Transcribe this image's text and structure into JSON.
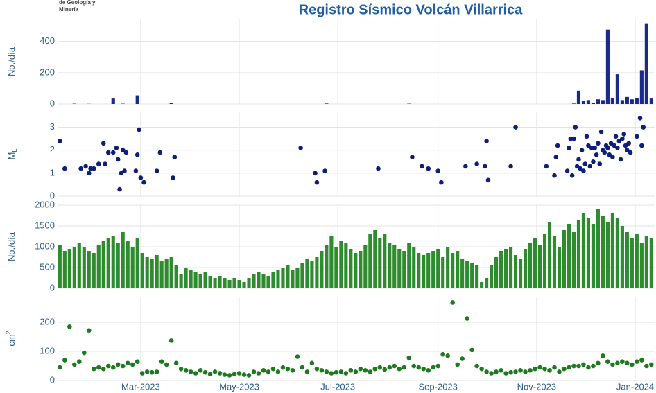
{
  "logo": [
    "de Geología y",
    "Minería"
  ],
  "chart_data": [
    {
      "type": "bar",
      "title": "Registro Sísmico Volcán Villarrica",
      "ylabel": "No./día",
      "color": "#1a2a8c",
      "xlim": [
        8,
        377
      ],
      "ylim": [
        0,
        540
      ],
      "yticks": [
        0,
        200,
        400
      ],
      "grid": true,
      "x": [
        9,
        12,
        15,
        18,
        21,
        24,
        27,
        30,
        33,
        36,
        39,
        42,
        45,
        48,
        51,
        54,
        57,
        60,
        63,
        66,
        69,
        72,
        75,
        78,
        81,
        84,
        87,
        90,
        93,
        96,
        99,
        102,
        105,
        108,
        111,
        114,
        117,
        120,
        123,
        126,
        129,
        132,
        135,
        138,
        141,
        144,
        147,
        150,
        153,
        156,
        159,
        162,
        165,
        168,
        171,
        174,
        177,
        180,
        183,
        186,
        189,
        192,
        195,
        198,
        201,
        204,
        207,
        210,
        213,
        216,
        219,
        222,
        225,
        228,
        231,
        234,
        237,
        240,
        243,
        246,
        249,
        252,
        255,
        258,
        261,
        264,
        267,
        270,
        273,
        276,
        279,
        282,
        285,
        288,
        291,
        294,
        297,
        300,
        303,
        306,
        309,
        312,
        315,
        318,
        321,
        324,
        327,
        330,
        333,
        336,
        339,
        342,
        345,
        348,
        351,
        354,
        357,
        360,
        363,
        366,
        369,
        372,
        375
      ],
      "values": [
        0,
        0,
        0,
        2,
        0,
        0,
        1,
        0,
        0,
        0,
        0,
        35,
        0,
        2,
        0,
        0,
        55,
        0,
        0,
        0,
        0,
        0,
        0,
        5,
        0,
        0,
        0,
        0,
        0,
        0,
        0,
        0,
        0,
        0,
        0,
        0,
        0,
        0,
        0,
        0,
        0,
        0,
        0,
        0,
        0,
        0,
        0,
        0,
        0,
        0,
        0,
        0,
        0,
        0,
        0,
        3,
        0,
        0,
        0,
        0,
        0,
        0,
        0,
        0,
        0,
        0,
        0,
        0,
        0,
        0,
        0,
        0,
        2,
        0,
        0,
        0,
        0,
        0,
        0,
        0,
        0,
        0,
        0,
        0,
        0,
        0,
        0,
        0,
        0,
        0,
        0,
        0,
        0,
        0,
        0,
        0,
        0,
        0,
        0,
        0,
        0,
        0,
        0,
        0,
        0,
        0,
        3,
        85,
        20,
        25,
        5,
        30,
        25,
        475,
        40,
        190,
        25,
        45,
        30,
        40,
        215,
        515,
        35
      ]
    },
    {
      "type": "scatter",
      "ylabel": "M",
      "ylabel_sub": "L",
      "color": "#0d1f7a",
      "xlim": [
        8,
        377
      ],
      "ylim": [
        0,
        3.65
      ],
      "yticks": [
        0,
        1,
        2,
        3
      ],
      "grid": true,
      "x": [
        9,
        12,
        22,
        25,
        27,
        28,
        30,
        33,
        36,
        37,
        39,
        42,
        44,
        45,
        46,
        47,
        48,
        49,
        50,
        56,
        57,
        58,
        59,
        61,
        69,
        71,
        79,
        80,
        158,
        167,
        168,
        173,
        206,
        227,
        233,
        237,
        243,
        245,
        260,
        267,
        272,
        273,
        274,
        288,
        291,
        310,
        315,
        316,
        317,
        323,
        324,
        325,
        326,
        327,
        328,
        329,
        330,
        331,
        332,
        333,
        334,
        335,
        336,
        337,
        338,
        339,
        340,
        341,
        342,
        343,
        344,
        345,
        346,
        347,
        348,
        349,
        350,
        351,
        352,
        353,
        354,
        355,
        356,
        357,
        358,
        359,
        360,
        361,
        362,
        366,
        368,
        369,
        370
      ],
      "values": [
        2.4,
        1.2,
        1.2,
        1.3,
        1.0,
        1.2,
        1.2,
        1.4,
        2.3,
        1.4,
        1.9,
        1.9,
        2.1,
        1.6,
        0.3,
        1.0,
        2.0,
        1.1,
        1.9,
        1.1,
        1.8,
        2.9,
        0.8,
        0.6,
        1.1,
        1.9,
        0.8,
        1.7,
        2.1,
        1.0,
        0.6,
        1.1,
        1.2,
        1.7,
        1.3,
        1.2,
        1.1,
        0.6,
        1.3,
        1.4,
        1.3,
        2.4,
        0.7,
        1.3,
        3.0,
        1.3,
        0.9,
        1.7,
        2.2,
        1.1,
        2.1,
        2.5,
        0.9,
        2.5,
        3.0,
        1.3,
        1.6,
        1.2,
        2.0,
        1.1,
        1.4,
        2.6,
        2.2,
        1.3,
        2.1,
        1.5,
        2.1,
        1.8,
        2.3,
        1.4,
        2.8,
        2.0,
        1.9,
        2.2,
        2.1,
        1.8,
        2.3,
        1.7,
        2.2,
        2.6,
        2.1,
        2.4,
        1.6,
        2.5,
        2.7,
        2.2,
        2.0,
        2.3,
        1.9,
        2.6,
        3.4,
        2.2,
        3.0
      ]
    },
    {
      "type": "bar",
      "ylabel": "No./día",
      "color": "#2e8b2e",
      "xlim": [
        8,
        377
      ],
      "ylim": [
        0,
        2000
      ],
      "yticks": [
        0,
        500,
        1000,
        1500,
        2000
      ],
      "grid": true,
      "x": [
        9,
        12,
        15,
        18,
        21,
        24,
        27,
        30,
        33,
        36,
        39,
        42,
        45,
        48,
        51,
        54,
        57,
        60,
        63,
        66,
        69,
        72,
        75,
        78,
        81,
        84,
        87,
        90,
        93,
        96,
        99,
        102,
        105,
        108,
        111,
        114,
        117,
        120,
        123,
        126,
        129,
        132,
        135,
        138,
        141,
        144,
        147,
        150,
        153,
        156,
        159,
        162,
        165,
        168,
        171,
        174,
        177,
        180,
        183,
        186,
        189,
        192,
        195,
        198,
        201,
        204,
        207,
        210,
        213,
        216,
        219,
        222,
        225,
        228,
        231,
        234,
        237,
        240,
        243,
        246,
        249,
        252,
        255,
        258,
        261,
        264,
        267,
        270,
        273,
        276,
        279,
        282,
        285,
        288,
        291,
        294,
        297,
        300,
        303,
        306,
        309,
        312,
        315,
        318,
        321,
        324,
        327,
        330,
        333,
        336,
        339,
        342,
        345,
        348,
        351,
        354,
        357,
        360,
        363,
        366,
        369,
        372,
        375
      ],
      "values": [
        1050,
        900,
        950,
        1000,
        1100,
        1000,
        900,
        850,
        1050,
        1150,
        1200,
        1250,
        1100,
        1350,
        1150,
        1000,
        1200,
        850,
        750,
        700,
        800,
        650,
        700,
        750,
        550,
        350,
        500,
        450,
        400,
        350,
        400,
        300,
        250,
        300,
        250,
        200,
        250,
        200,
        150,
        250,
        350,
        400,
        350,
        300,
        400,
        450,
        500,
        550,
        450,
        500,
        600,
        700,
        650,
        750,
        900,
        1050,
        1250,
        1000,
        1150,
        1100,
        950,
        850,
        900,
        1050,
        1300,
        1400,
        1200,
        1300,
        1100,
        1050,
        950,
        900,
        1100,
        1000,
        850,
        800,
        850,
        900,
        950,
        750,
        1000,
        850,
        900,
        700,
        650,
        600,
        550,
        150,
        250,
        550,
        750,
        900,
        950,
        1000,
        800,
        700,
        950,
        1100,
        1200,
        1050,
        1300,
        1600,
        1250,
        1000,
        1400,
        1550,
        1350,
        1650,
        1800,
        1700,
        1550,
        1900,
        1750,
        1600,
        1800,
        1700,
        1500,
        1350,
        1200,
        1300,
        1100,
        1250,
        1200
      ]
    },
    {
      "type": "scatter",
      "ylabel": "cm",
      "ylabel_sup": "2",
      "color": "#1e7a1e",
      "xlim": [
        8,
        377
      ],
      "ylim": [
        0,
        288
      ],
      "yticks": [
        0,
        100,
        200
      ],
      "grid": true,
      "xticks": [
        {
          "value": 59,
          "label": "Mar-2023"
        },
        {
          "value": 120,
          "label": "May-2023"
        },
        {
          "value": 181,
          "label": "Jul-2023"
        },
        {
          "value": 243,
          "label": "Sep-2023"
        },
        {
          "value": 304,
          "label": "Nov-2023"
        },
        {
          "value": 365,
          "label": "Jan-2024"
        }
      ],
      "x": [
        9,
        12,
        15,
        18,
        21,
        24,
        27,
        30,
        33,
        36,
        39,
        42,
        45,
        48,
        51,
        54,
        57,
        60,
        63,
        66,
        69,
        72,
        75,
        78,
        81,
        84,
        87,
        90,
        93,
        96,
        99,
        102,
        105,
        108,
        111,
        114,
        117,
        120,
        123,
        126,
        129,
        132,
        135,
        138,
        141,
        144,
        147,
        150,
        153,
        156,
        159,
        162,
        165,
        168,
        171,
        174,
        177,
        180,
        183,
        186,
        189,
        192,
        195,
        198,
        201,
        204,
        207,
        210,
        213,
        216,
        219,
        222,
        225,
        228,
        231,
        234,
        237,
        240,
        243,
        246,
        249,
        252,
        255,
        258,
        261,
        264,
        267,
        270,
        273,
        276,
        279,
        282,
        285,
        288,
        291,
        294,
        297,
        300,
        303,
        306,
        309,
        312,
        315,
        318,
        321,
        324,
        327,
        330,
        333,
        336,
        339,
        342,
        345,
        348,
        351,
        354,
        357,
        360,
        363,
        366,
        369,
        372,
        375
      ],
      "values": [
        45,
        70,
        185,
        55,
        65,
        95,
        172,
        40,
        45,
        40,
        50,
        45,
        55,
        50,
        60,
        55,
        65,
        25,
        30,
        28,
        30,
        65,
        55,
        137,
        60,
        40,
        35,
        30,
        25,
        35,
        28,
        22,
        30,
        25,
        20,
        18,
        22,
        25,
        20,
        18,
        30,
        25,
        35,
        30,
        40,
        30,
        45,
        40,
        35,
        82,
        45,
        30,
        60,
        40,
        35,
        30,
        25,
        28,
        30,
        25,
        35,
        30,
        40,
        35,
        30,
        40,
        45,
        38,
        45,
        50,
        40,
        45,
        78,
        50,
        45,
        40,
        35,
        45,
        50,
        90,
        85,
        268,
        55,
        75,
        213,
        105,
        50,
        40,
        30,
        25,
        30,
        35,
        25,
        28,
        30,
        35,
        30,
        35,
        40,
        45,
        40,
        35,
        45,
        30,
        40,
        45,
        50,
        50,
        55,
        45,
        50,
        60,
        85,
        65,
        55,
        60,
        65,
        60,
        55,
        65,
        70,
        50,
        55
      ]
    }
  ]
}
